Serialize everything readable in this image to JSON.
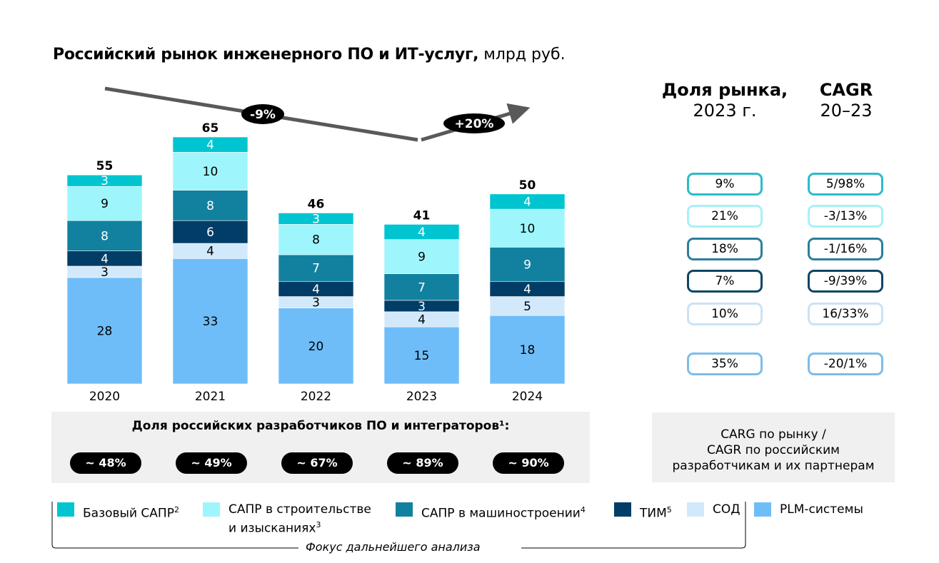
{
  "title": {
    "bold": "Российский рынок инженерного ПО и ИТ-услуг,",
    "unit": "млрд руб."
  },
  "chart_data": {
    "type": "bar",
    "stacked": true,
    "title": "Российский рынок инженерного ПО и ИТ-услуг, млрд руб.",
    "xlabel": "",
    "ylabel": "",
    "categories": [
      "2020",
      "2021",
      "2022",
      "2023",
      "2024"
    ],
    "totals": [
      55,
      65,
      46,
      41,
      50
    ],
    "series": [
      {
        "name": "PLM-системы",
        "color": "#6ebdf8",
        "label_color": "#000000",
        "values": [
          28,
          33,
          20,
          15,
          18
        ]
      },
      {
        "name": "СОД",
        "color": "#d2e9fb",
        "label_color": "#000000",
        "values": [
          3,
          4,
          3,
          4,
          5
        ]
      },
      {
        "name": "ТИМ",
        "superscript": "5",
        "color": "#013d66",
        "label_color": "#ffffff",
        "values": [
          4,
          6,
          4,
          3,
          4
        ]
      },
      {
        "name": "САПР в машиностроении",
        "superscript": "4",
        "color": "#12819f",
        "label_color": "#ffffff",
        "values": [
          8,
          8,
          7,
          7,
          9
        ]
      },
      {
        "name": "САПР в строительстве и изысканиях",
        "superscript": "3",
        "color": "#9ef6fc",
        "label_color": "#000000",
        "values": [
          9,
          10,
          8,
          9,
          10
        ]
      },
      {
        "name": "Базовый САПР",
        "superscript": "2",
        "color": "#00c5d1",
        "label_color": "#ffffff",
        "values": [
          3,
          4,
          3,
          4,
          4
        ]
      }
    ],
    "ylim": [
      0,
      65
    ],
    "grid": false,
    "annotations": [
      {
        "label": "-9%",
        "from": "2020",
        "to": "2023",
        "direction": "down"
      },
      {
        "label": "+20%",
        "from": "2023",
        "to": "2024",
        "direction": "up"
      }
    ]
  },
  "right_panel": {
    "share_header": {
      "bold": "Доля рынка,",
      "normal": "2023 г."
    },
    "cagr_header": {
      "bold": "CAGR",
      "normal": "20–23"
    },
    "rows": [
      {
        "segment": "Базовый САПР",
        "share": "9%",
        "cagr": "5/98%",
        "color": "#2bbcc8"
      },
      {
        "segment": "САПР в строительстве и изысканиях",
        "share": "21%",
        "cagr": "-3/13%",
        "color": "#a8f0f8"
      },
      {
        "segment": "САПР в машиностроении",
        "share": "18%",
        "cagr": "-1/16%",
        "color": "#2a7f9c"
      },
      {
        "segment": "ТИМ",
        "share": "7%",
        "cagr": "-9/39%",
        "color": "#0d4566"
      },
      {
        "segment": "СОД",
        "share": "10%",
        "cagr": "16/33%",
        "color": "#cbe2f4"
      },
      {
        "segment": "PLM-системы",
        "share": "35%",
        "cagr": "-20/1%",
        "color": "#7cbde8"
      }
    ],
    "note": [
      "CARG по рынку /",
      "CAGR по российским",
      "разработчикам и их партнерам"
    ]
  },
  "developers": {
    "title": "Доля российских разработчиков ПО и интеграторов¹:",
    "values": [
      "~ 48%",
      "~ 49%",
      "~ 67%",
      "~ 89%",
      "~ 90%"
    ]
  },
  "legend": [
    {
      "label": "Базовый САПР",
      "sup": "2",
      "color": "#00c5d1"
    },
    {
      "label": "САПР в строительстве",
      "label2": "и изысканиях",
      "sup": "3",
      "color": "#9ef6fc"
    },
    {
      "label": "САПР в машиностроении",
      "sup": "4",
      "color": "#12819f"
    },
    {
      "label": "ТИМ",
      "sup": "5",
      "color": "#013d66"
    },
    {
      "label": "СОД",
      "sup": "",
      "color": "#d2e9fb"
    },
    {
      "label": "PLM-системы",
      "sup": "",
      "color": "#6ebdf8"
    }
  ],
  "focus_label": "Фокус дальнейшего анализа"
}
